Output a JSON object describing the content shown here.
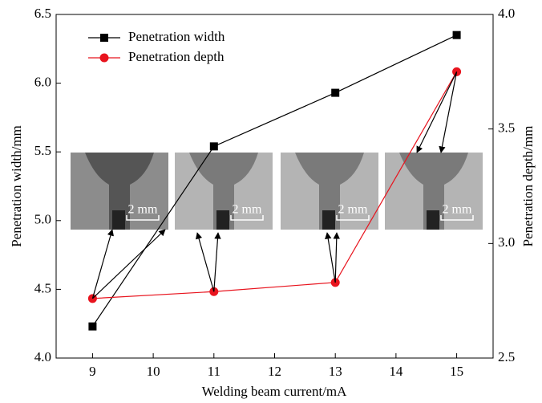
{
  "chart_data": {
    "type": "line",
    "x_label": "Welding beam current/mA",
    "y_label": "Penetration width/mm",
    "y2_label": "Penetration depth/mm",
    "x": [
      9,
      11,
      13,
      15
    ],
    "xlim": [
      8.4,
      15.6
    ],
    "xticks": [
      9,
      10,
      11,
      12,
      13,
      14,
      15
    ],
    "ylim": [
      4.0,
      6.5
    ],
    "yticks": [
      {
        "value": 4.0,
        "label": "4.0"
      },
      {
        "value": 4.5,
        "label": "4.5"
      },
      {
        "value": 5.0,
        "label": "5.0"
      },
      {
        "value": 5.5,
        "label": "5.5"
      },
      {
        "value": 6.0,
        "label": "6.0"
      },
      {
        "value": 6.5,
        "label": "6.5"
      }
    ],
    "y2lim": [
      2.5,
      4.0
    ],
    "y2ticks": [
      {
        "value": 2.5,
        "label": "2.5"
      },
      {
        "value": 3.0,
        "label": "3.0"
      },
      {
        "value": 3.5,
        "label": "3.5"
      },
      {
        "value": 4.0,
        "label": "4.0"
      }
    ],
    "legend": "upper left",
    "series": [
      {
        "name": "Penetration width",
        "color": "#000000",
        "marker": "square",
        "axis": "y",
        "values": [
          4.23,
          5.54,
          5.93,
          6.35
        ]
      },
      {
        "name": "Penetration depth",
        "color": "#e8141e",
        "marker": "circle",
        "axis": "y2",
        "values": [
          2.76,
          2.79,
          2.83,
          3.75
        ]
      }
    ],
    "insets": [
      {
        "scale_label": "2 mm"
      },
      {
        "scale_label": "2 mm"
      },
      {
        "scale_label": "2 mm"
      },
      {
        "scale_label": "2 mm"
      }
    ]
  }
}
